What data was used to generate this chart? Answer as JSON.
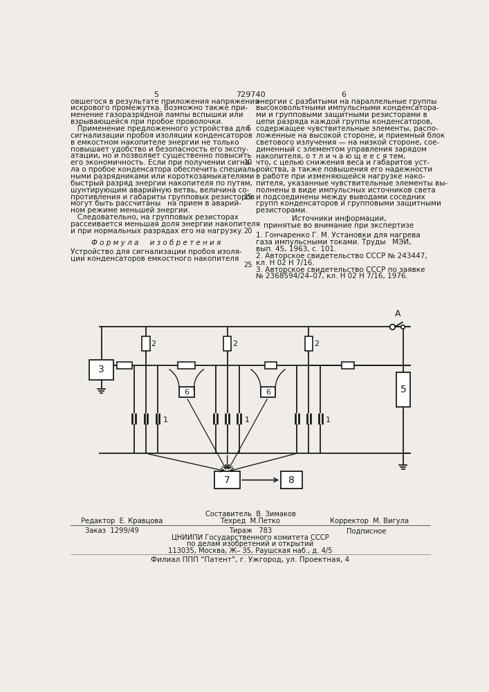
{
  "page_number_center": "729740",
  "page_col_left": "5",
  "page_col_right": "6",
  "bg_color": "#f0ede8",
  "text_color": "#1a1a1a",
  "left_col_text": [
    "овшегося в результате приложения напряжения",
    "искрового промежутка. Возможно также при-",
    "менение газоразрядной лампы вспышки или",
    "взрывающейся при пробое проволочки.",
    "   Применение предложенного устройства для",
    "сигнализации пробоя изоляции конденсаторов",
    "в емкостном накопителе энергии не только",
    "повышает удобство и безопасность его экспу-",
    "атации, но и позволяет существенно повысить",
    "его экономичность. Если при получении сигна-",
    "ла о пробое конденсатора обеспечить специаль-",
    "ными разрядниками или короткозамыкателями",
    "быстрый разряд энергии накопителя по путям,",
    "шунтирующим аварийную ветвь, величина со-",
    "противления и габариты групповых резисторов",
    "могут быть рассчитаны   на прием в аварий-",
    "ном режиме меньшей энергии.",
    "   Следовательно, на групповых резисторах",
    "рассеивается меньшая доля энергии накопителя",
    "и при нормальных разрядах его на нагрузку."
  ],
  "right_col_text": [
    "энергии с разбитыми на параллельные группы",
    "высоковольтными импульсными конденсатора-",
    "ми и групповыми защитными резисторами в",
    "цепи разряда каждой группы конденсаторов,",
    "содержащее чувствительные элементы, распо-",
    "ложенные на высокой стороне, и приемный блок",
    "светового излучения — на низкой стороне, сое-",
    "диненный с элементом управления зарядом",
    "накопителя, о т л и ч а ю щ е е с я тем,",
    "что, с целью снижения веса и габаритов уст-",
    "ройства, а также повышения его надежности",
    "в работе при изменяющейся нагрузке нако-",
    "пителя, указанные чувствительные элементы вы-",
    "полнены в виде импульсных источников света",
    "и подсоединены между выводами соседних",
    "групп конденсаторов и групповыми защитными",
    "резисторами."
  ],
  "line_nums": {
    "5": 4,
    "10": 9,
    "15": 14,
    "20": 19,
    "25": 24
  },
  "formula_heading": "Ф о р м у л а     и з о б р е т е н и я",
  "formula_text": [
    "Устройство для сигнализации пробоя изоля-",
    "ции конденсаторов емкостного накопителя"
  ],
  "ref_heading1": "Источники информации,",
  "ref_heading2": "принятые во внимание при экспертизе",
  "refs": [
    "1. Гончаренко Г. М. Установки для нагрева",
    "газа импульсными токами. Труды   МЭИ,",
    "вып. 45, 1963, с. 101.",
    "2. Авторское свидетельство СССР № 243447,",
    "кл. Н 02 Н 7/16.",
    "3. Авторское свидетельство СССР по заявке",
    "№ 2368594/24–07, кл. Н 02 Н 7/16, 1976."
  ],
  "footer_composer": "Составитель  В. Зимаков",
  "footer_editor": "Редактор  Е. Кравцова",
  "footer_techred": "Техред  М.Петко",
  "footer_corrector": "Корректор  М. Вигула",
  "footer_order": "Заказ  1299/49",
  "footer_tirazh": "Тираж   783",
  "footer_podpisnoe": "Подписное",
  "footer_org": "ЦНИИПИ Государственного комитета СССР",
  "footer_org2": "по делам изобретений и открытий",
  "footer_address": "113035, Москва, Ж– 35, Раушская наб., д. 4/5",
  "footer_filial": "Филиал ППП “Патент”, г. Ужгород, ул. Проектная, 4"
}
